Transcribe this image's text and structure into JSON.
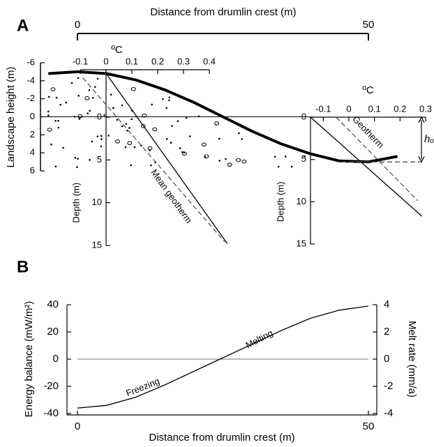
{
  "chart_data": [
    {
      "type": "line",
      "panel": "A",
      "x_label": "Distance from drumlin crest  (m)",
      "y_label": "Landscape height (m)",
      "xlim": [
        0,
        50
      ],
      "xticks": [
        0,
        50
      ],
      "ylim": [
        -6,
        6
      ],
      "yticks": [
        -6,
        -4,
        -2,
        0,
        2,
        4,
        6
      ],
      "y_inverted": true,
      "x": [
        -5,
        0,
        5,
        10,
        15,
        20,
        25,
        30,
        35,
        40,
        45,
        50,
        55
      ],
      "series": [
        {
          "color": "#000000",
          "values": [
            -4.8,
            -5,
            -4.8,
            -4.1,
            -3.0,
            -1.6,
            0,
            1.6,
            3.0,
            4.1,
            4.9,
            5.0,
            4.4
          ]
        }
      ]
    },
    {
      "type": "line",
      "x_label": "ºC",
      "y_label": "Depth (m)",
      "xlim": [
        -0.1,
        0.4
      ],
      "xticks": [
        -0.1,
        0,
        0.1,
        0.2,
        0.3,
        0.4
      ],
      "ylim": [
        0,
        15
      ],
      "yticks": [
        0,
        5,
        10,
        15
      ],
      "y_inverted": true,
      "annotations": [
        "Mean geotherm"
      ],
      "series": [
        {
          "color": "#000000",
          "dashed": false,
          "x": [
            0,
            0.47
          ],
          "values": [
            -5.1,
            14.8
          ]
        },
        {
          "color": "#555555",
          "dashed": true,
          "x": [
            -0.09,
            0.46
          ],
          "values": [
            -4.6,
            14.6
          ]
        }
      ]
    },
    {
      "type": "line",
      "x_label": "ºC",
      "y_label": "Depth (m)",
      "xlim": [
        -0.15,
        0.3
      ],
      "xticks": [
        -0.1,
        0,
        0.1,
        0.2,
        0.3
      ],
      "ylim": [
        0,
        15
      ],
      "yticks": [
        0,
        5,
        10,
        15
      ],
      "y_inverted": true,
      "annotations": [
        "Geotherm",
        "hₒ"
      ],
      "series": [
        {
          "color": "#000000",
          "dashed": false,
          "x": [
            -0.15,
            0.285
          ],
          "values": [
            0,
            11.7
          ]
        },
        {
          "color": "#555555",
          "dashed": true,
          "x": [
            -0.05,
            0.27
          ],
          "values": [
            0,
            9.9
          ]
        },
        {
          "color": "#555555",
          "dashed": true,
          "x": [
            -0.03,
            0.28
          ],
          "values": [
            5.3,
            5.3
          ]
        }
      ]
    },
    {
      "type": "line",
      "panel": "B",
      "x_label": "Distance from drumlin crest  (m)",
      "y_label": "Energy balance (mW/m²)",
      "y2_label": "Melt rate (mm/a)",
      "xlim": [
        0,
        50
      ],
      "xticks": [
        0,
        50
      ],
      "ylim": [
        -40,
        40
      ],
      "yticks": [
        -40,
        -20,
        0,
        20,
        40
      ],
      "y2lim": [
        -4,
        4
      ],
      "y2ticks": [
        -4,
        -2,
        0,
        2,
        4
      ],
      "annotations": [
        "Freezing",
        "Melting"
      ],
      "x": [
        0,
        5,
        10,
        15,
        20,
        25,
        30,
        35,
        40,
        45,
        50
      ],
      "series": [
        {
          "color": "#000000",
          "values": [
            -36,
            -34,
            -28,
            -19,
            -9,
            1,
            11,
            21,
            30,
            36,
            39
          ]
        }
      ]
    }
  ]
}
